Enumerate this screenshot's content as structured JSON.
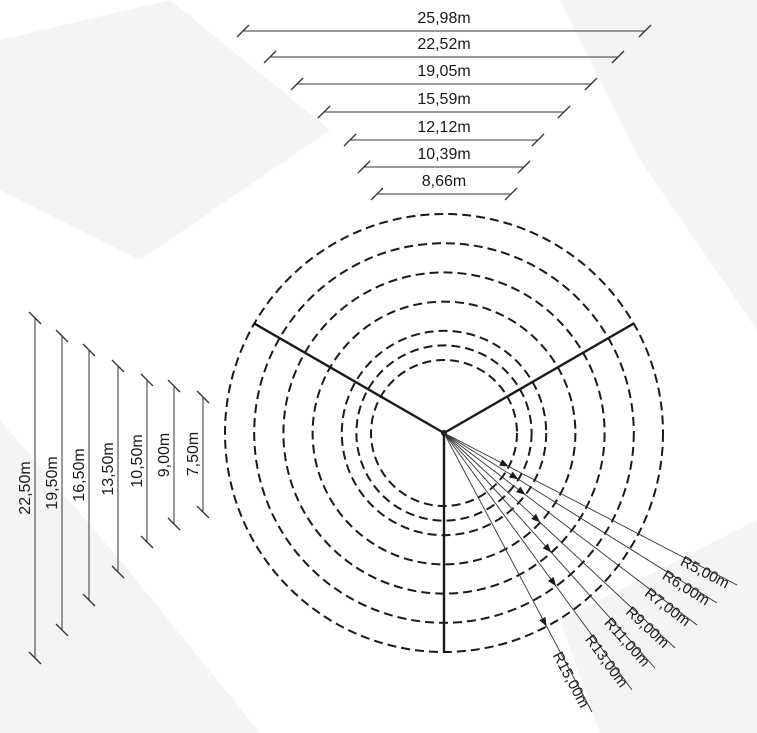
{
  "horizontal_dimensions": [
    "25,98m",
    "22,52m",
    "19,05m",
    "15,59m",
    "12,12m",
    "10,39m",
    "8,66m"
  ],
  "vertical_dimensions": [
    "22,50m",
    "19,50m",
    "16,50m",
    "13,50m",
    "10,50m",
    "9,00m",
    "7,50m"
  ],
  "radius_labels": [
    "R5,00m",
    "R6,00m",
    "R7,00m",
    "R9,00m",
    "R11,00m",
    "R13,00m",
    "R15,00m"
  ],
  "radii_m": [
    5,
    6,
    7,
    9,
    11,
    13,
    15
  ],
  "colors": {
    "line": "#1a1a1a",
    "dim": "#333333",
    "ghost": "#f4f4f4"
  }
}
